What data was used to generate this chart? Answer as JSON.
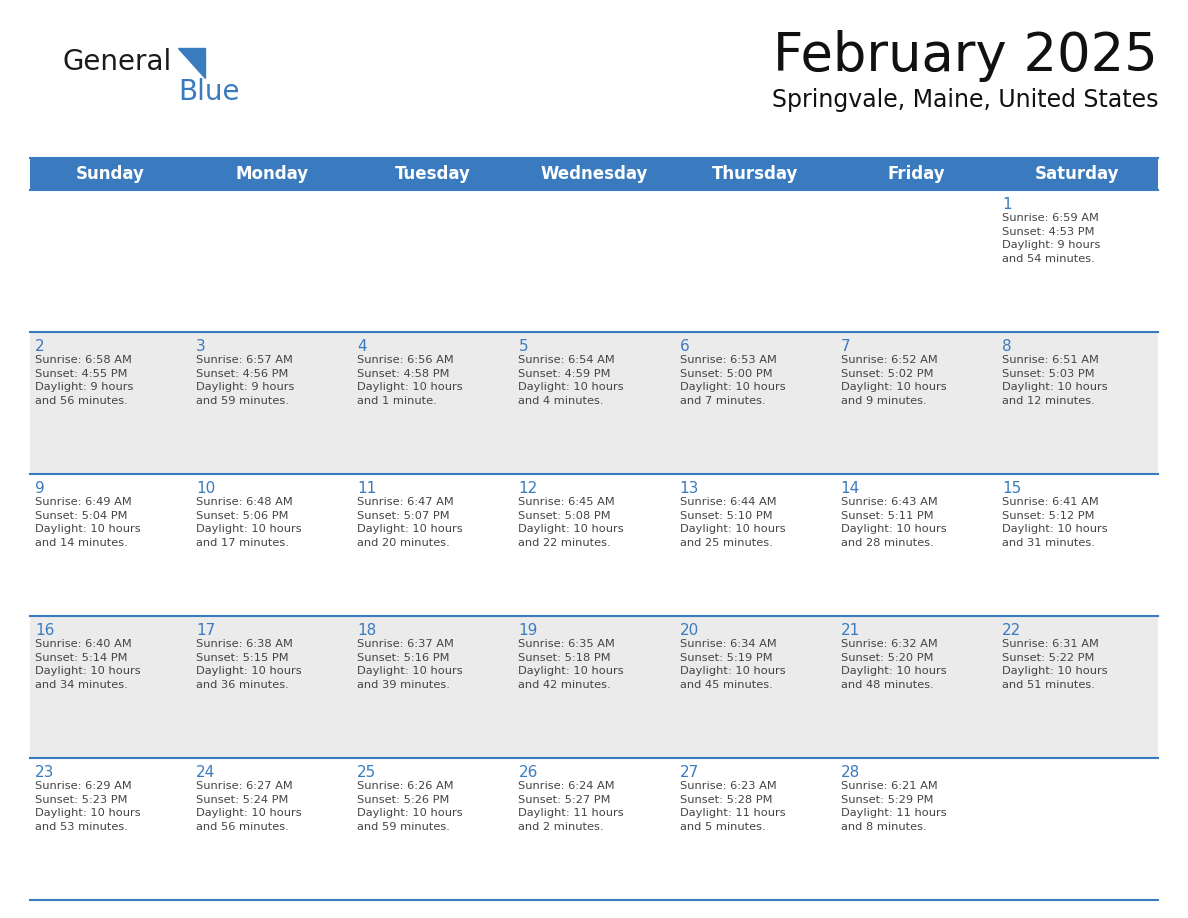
{
  "title": "February 2025",
  "subtitle": "Springvale, Maine, United States",
  "header_color": "#3a7bbf",
  "header_text_color": "#ffffff",
  "cell_bg_row0": "#ffffff",
  "cell_bg_row1": "#ebebeb",
  "cell_bg_row2": "#ffffff",
  "cell_bg_row3": "#ebebeb",
  "cell_bg_row4": "#ffffff",
  "day_number_color": "#3a7bbf",
  "info_text_color": "#444444",
  "border_color": "#3a7bbf",
  "days_of_week": [
    "Sunday",
    "Monday",
    "Tuesday",
    "Wednesday",
    "Thursday",
    "Friday",
    "Saturday"
  ],
  "weeks": [
    [
      {
        "day": null,
        "info": null
      },
      {
        "day": null,
        "info": null
      },
      {
        "day": null,
        "info": null
      },
      {
        "day": null,
        "info": null
      },
      {
        "day": null,
        "info": null
      },
      {
        "day": null,
        "info": null
      },
      {
        "day": 1,
        "info": "Sunrise: 6:59 AM\nSunset: 4:53 PM\nDaylight: 9 hours\nand 54 minutes."
      }
    ],
    [
      {
        "day": 2,
        "info": "Sunrise: 6:58 AM\nSunset: 4:55 PM\nDaylight: 9 hours\nand 56 minutes."
      },
      {
        "day": 3,
        "info": "Sunrise: 6:57 AM\nSunset: 4:56 PM\nDaylight: 9 hours\nand 59 minutes."
      },
      {
        "day": 4,
        "info": "Sunrise: 6:56 AM\nSunset: 4:58 PM\nDaylight: 10 hours\nand 1 minute."
      },
      {
        "day": 5,
        "info": "Sunrise: 6:54 AM\nSunset: 4:59 PM\nDaylight: 10 hours\nand 4 minutes."
      },
      {
        "day": 6,
        "info": "Sunrise: 6:53 AM\nSunset: 5:00 PM\nDaylight: 10 hours\nand 7 minutes."
      },
      {
        "day": 7,
        "info": "Sunrise: 6:52 AM\nSunset: 5:02 PM\nDaylight: 10 hours\nand 9 minutes."
      },
      {
        "day": 8,
        "info": "Sunrise: 6:51 AM\nSunset: 5:03 PM\nDaylight: 10 hours\nand 12 minutes."
      }
    ],
    [
      {
        "day": 9,
        "info": "Sunrise: 6:49 AM\nSunset: 5:04 PM\nDaylight: 10 hours\nand 14 minutes."
      },
      {
        "day": 10,
        "info": "Sunrise: 6:48 AM\nSunset: 5:06 PM\nDaylight: 10 hours\nand 17 minutes."
      },
      {
        "day": 11,
        "info": "Sunrise: 6:47 AM\nSunset: 5:07 PM\nDaylight: 10 hours\nand 20 minutes."
      },
      {
        "day": 12,
        "info": "Sunrise: 6:45 AM\nSunset: 5:08 PM\nDaylight: 10 hours\nand 22 minutes."
      },
      {
        "day": 13,
        "info": "Sunrise: 6:44 AM\nSunset: 5:10 PM\nDaylight: 10 hours\nand 25 minutes."
      },
      {
        "day": 14,
        "info": "Sunrise: 6:43 AM\nSunset: 5:11 PM\nDaylight: 10 hours\nand 28 minutes."
      },
      {
        "day": 15,
        "info": "Sunrise: 6:41 AM\nSunset: 5:12 PM\nDaylight: 10 hours\nand 31 minutes."
      }
    ],
    [
      {
        "day": 16,
        "info": "Sunrise: 6:40 AM\nSunset: 5:14 PM\nDaylight: 10 hours\nand 34 minutes."
      },
      {
        "day": 17,
        "info": "Sunrise: 6:38 AM\nSunset: 5:15 PM\nDaylight: 10 hours\nand 36 minutes."
      },
      {
        "day": 18,
        "info": "Sunrise: 6:37 AM\nSunset: 5:16 PM\nDaylight: 10 hours\nand 39 minutes."
      },
      {
        "day": 19,
        "info": "Sunrise: 6:35 AM\nSunset: 5:18 PM\nDaylight: 10 hours\nand 42 minutes."
      },
      {
        "day": 20,
        "info": "Sunrise: 6:34 AM\nSunset: 5:19 PM\nDaylight: 10 hours\nand 45 minutes."
      },
      {
        "day": 21,
        "info": "Sunrise: 6:32 AM\nSunset: 5:20 PM\nDaylight: 10 hours\nand 48 minutes."
      },
      {
        "day": 22,
        "info": "Sunrise: 6:31 AM\nSunset: 5:22 PM\nDaylight: 10 hours\nand 51 minutes."
      }
    ],
    [
      {
        "day": 23,
        "info": "Sunrise: 6:29 AM\nSunset: 5:23 PM\nDaylight: 10 hours\nand 53 minutes."
      },
      {
        "day": 24,
        "info": "Sunrise: 6:27 AM\nSunset: 5:24 PM\nDaylight: 10 hours\nand 56 minutes."
      },
      {
        "day": 25,
        "info": "Sunrise: 6:26 AM\nSunset: 5:26 PM\nDaylight: 10 hours\nand 59 minutes."
      },
      {
        "day": 26,
        "info": "Sunrise: 6:24 AM\nSunset: 5:27 PM\nDaylight: 11 hours\nand 2 minutes."
      },
      {
        "day": 27,
        "info": "Sunrise: 6:23 AM\nSunset: 5:28 PM\nDaylight: 11 hours\nand 5 minutes."
      },
      {
        "day": 28,
        "info": "Sunrise: 6:21 AM\nSunset: 5:29 PM\nDaylight: 11 hours\nand 8 minutes."
      },
      {
        "day": null,
        "info": null
      }
    ]
  ],
  "logo_general_color": "#1a1a1a",
  "logo_blue_color": "#3a7bbf",
  "title_fontsize": 38,
  "subtitle_fontsize": 17,
  "header_fontsize": 12,
  "day_num_fontsize": 11,
  "info_fontsize": 8.2
}
